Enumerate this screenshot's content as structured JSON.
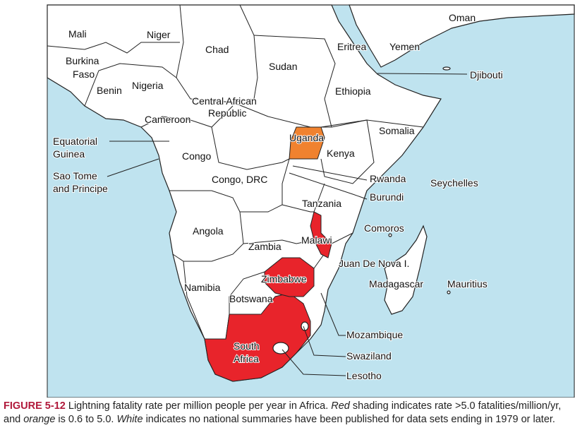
{
  "figure": {
    "labels": [
      [
        "Mali"
      ],
      [
        "Niger"
      ],
      [
        "Chad"
      ],
      [
        "Burkina",
        "Faso"
      ],
      [
        "Benin"
      ],
      [
        "Nigeria"
      ],
      [
        "Sudan"
      ],
      [
        "Eritrea"
      ],
      [
        "Yemen"
      ],
      [
        "Oman"
      ],
      [
        "Djibouti"
      ],
      [
        "Ethiopia"
      ],
      [
        "Central African",
        "Republic"
      ],
      [
        "Cameroon"
      ],
      [
        "Somalia"
      ],
      [
        "Uganda"
      ],
      [
        "Kenya"
      ],
      [
        "Equatorial",
        "Guinea"
      ],
      [
        "Congo"
      ],
      [
        "Sao Tome",
        "and Principe"
      ],
      [
        "Congo, DRC"
      ],
      [
        "Rwanda"
      ],
      [
        "Seychelles"
      ],
      [
        "Burundi"
      ],
      [
        "Tanzania"
      ],
      [
        "Comoros"
      ],
      [
        "Angola"
      ],
      [
        "Malawi"
      ],
      [
        "Zambia"
      ],
      [
        "Juan De Nova I."
      ],
      [
        "Zimbabwe"
      ],
      [
        "Madagascar"
      ],
      [
        "Mauritius"
      ],
      [
        "Namibia"
      ],
      [
        "Botswana"
      ],
      [
        "Mozambique"
      ],
      [
        "South",
        "Africa"
      ],
      [
        "Swaziland"
      ],
      [
        "Lesotho"
      ]
    ],
    "caption": {
      "label": "FIGURE 5-12",
      "parts": [
        "Lightning fatality rate per million people per year in Africa.",
        "Red",
        "shading indicates rate >5.0 fatalities/million/yr, and",
        "orange",
        "is 0.6 to 5.0.",
        "White",
        "indicates no national summaries have been published for data sets ending in 1979 or later."
      ]
    }
  }
}
